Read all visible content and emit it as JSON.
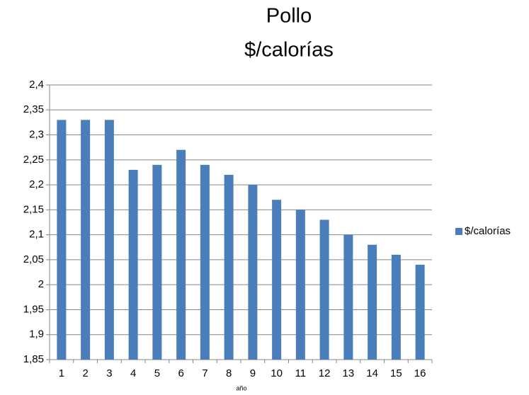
{
  "chart_data": {
    "type": "bar",
    "title": "Pollo",
    "subtitle": "$/calorías",
    "x_label": "año",
    "categories": [
      "1",
      "2",
      "3",
      "4",
      "5",
      "6",
      "7",
      "8",
      "9",
      "10",
      "11",
      "12",
      "13",
      "14",
      "15",
      "16"
    ],
    "series": [
      {
        "name": "$/calorías",
        "color": "#4a7ebb",
        "values": [
          2.33,
          2.33,
          2.33,
          2.23,
          2.24,
          2.27,
          2.24,
          2.22,
          2.2,
          2.17,
          2.15,
          2.13,
          2.1,
          2.08,
          2.06,
          2.04
        ]
      }
    ],
    "ylim": [
      1.85,
      2.4
    ],
    "yticks": [
      {
        "value": 1.85,
        "label": "1,85"
      },
      {
        "value": 1.9,
        "label": "1,9"
      },
      {
        "value": 1.95,
        "label": "1,95"
      },
      2,
      {
        "value": 2.05,
        "label": "2,05"
      },
      {
        "value": 2.1,
        "label": "2,1"
      },
      {
        "value": 2.15,
        "label": "2,15"
      },
      {
        "value": 2.2,
        "label": "2,2"
      },
      {
        "value": 2.25,
        "label": "2,25"
      },
      {
        "value": 2.3,
        "label": "2,3"
      },
      {
        "value": 2.35,
        "label": "2,35"
      },
      {
        "value": 2.4,
        "label": "2,4"
      }
    ],
    "grid": true,
    "legend": "right"
  }
}
